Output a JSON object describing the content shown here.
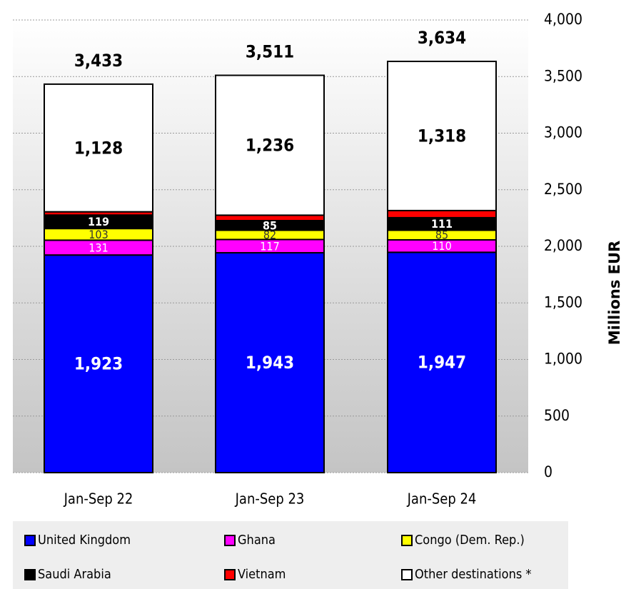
{
  "chart_data": {
    "type": "stacked_bar",
    "categories": [
      "Jan-Sep 22",
      "Jan-Sep 23",
      "Jan-Sep 24"
    ],
    "series": [
      {
        "name": "United Kingdom",
        "color": "#0000ff",
        "label_color": "#ffffff",
        "values": [
          1923,
          1943,
          1947
        ],
        "value_labels": [
          "1,923",
          "1,943",
          "1,947"
        ]
      },
      {
        "name": "Ghana",
        "color": "#ff00ff",
        "label_color": "#ffffff",
        "values": [
          131,
          117,
          110
        ],
        "value_labels": [
          "131",
          "117",
          "110"
        ]
      },
      {
        "name": "Congo (Dem. Rep.)",
        "color": "#ffff00",
        "label_color": "#333333",
        "values": [
          103,
          82,
          85
        ],
        "value_labels": [
          "103",
          "82",
          "85"
        ]
      },
      {
        "name": "Saudi Arabia",
        "color": "#000000",
        "label_color": "#ffffff",
        "values": [
          119,
          85,
          111
        ],
        "value_labels": [
          "119",
          "85",
          "111"
        ]
      },
      {
        "name": "Vietnam",
        "color": "#ff0000",
        "values": [
          29,
          48,
          63
        ]
      },
      {
        "name": "Other destinations *",
        "color": "#ffffff",
        "label_color": "#000000",
        "values": [
          1128,
          1236,
          1318
        ],
        "value_labels": [
          "1,128",
          "1,236",
          "1,318"
        ]
      }
    ],
    "totals": [
      3433,
      3511,
      3634
    ],
    "total_labels": [
      "3,433",
      "3,511",
      "3,634"
    ],
    "y_axis_label": "Millions  EUR",
    "ylim": [
      0,
      4000
    ],
    "yticks": [
      0,
      500,
      {
        "value": 1000,
        "label": "1,000"
      },
      {
        "value": 1500,
        "label": "1,500"
      },
      {
        "value": 2000,
        "label": "2,000"
      },
      {
        "value": 2500,
        "label": "2,500"
      },
      {
        "value": 3000,
        "label": "3,000"
      },
      {
        "value": 3500,
        "label": "3,500"
      },
      {
        "value": 4000,
        "label": "4,000"
      }
    ],
    "grid": true
  }
}
